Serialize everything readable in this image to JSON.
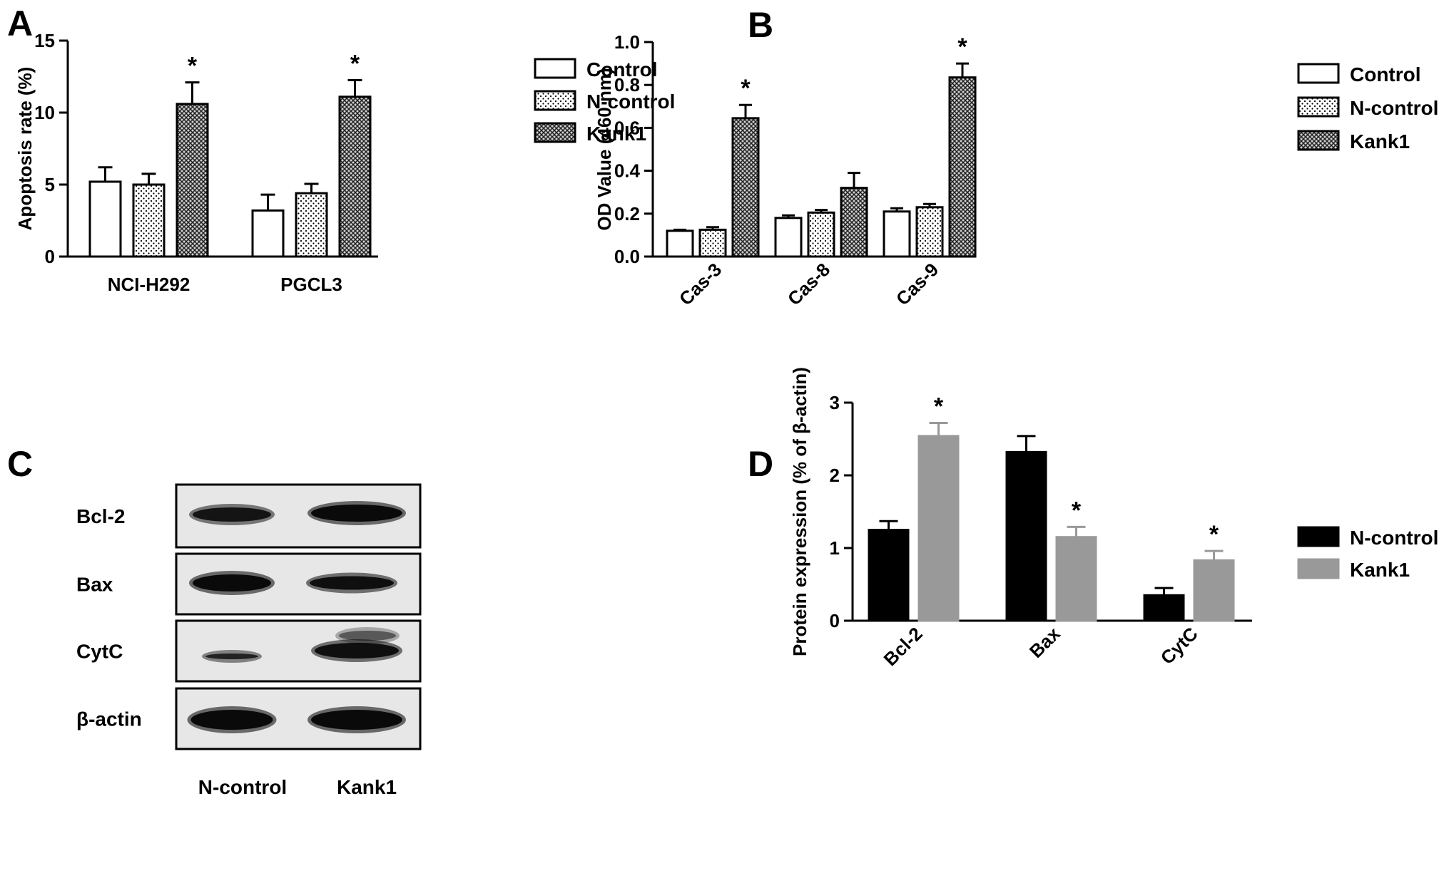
{
  "panels": {
    "A": {
      "letter": "A",
      "chart_data": {
        "type": "bar",
        "categories": [
          "NCI-H292",
          "PGCL3"
        ],
        "series": [
          {
            "name": "Control",
            "values": [
              5.2,
              3.2
            ],
            "errors": [
              1.0,
              1.1
            ]
          },
          {
            "name": "N-control",
            "values": [
              5.0,
              4.4
            ],
            "errors": [
              0.75,
              0.65
            ]
          },
          {
            "name": "Kank1",
            "values": [
              10.6,
              11.1
            ],
            "errors": [
              1.5,
              1.15
            ]
          }
        ],
        "significance": [
          [
            "",
            "",
            "*"
          ],
          [
            "",
            "",
            "*"
          ]
        ],
        "ylabel": "Apoptosis rate (%)",
        "ylim": [
          0,
          15
        ],
        "yticks": [
          "0",
          "5",
          "10",
          "15"
        ],
        "legend": "right",
        "patterns": [
          "white",
          "dots",
          "crosshatch"
        ]
      }
    },
    "B": {
      "letter": "B",
      "chart_data": {
        "type": "bar",
        "categories": [
          "Cas-3",
          "Cas-8",
          "Cas-9"
        ],
        "series": [
          {
            "name": "Control",
            "values": [
              0.12,
              0.18,
              0.21
            ],
            "errors": [
              0.005,
              0.012,
              0.015
            ]
          },
          {
            "name": "N-control",
            "values": [
              0.125,
              0.205,
              0.23
            ],
            "errors": [
              0.012,
              0.012,
              0.015
            ]
          },
          {
            "name": "Kank1",
            "values": [
              0.645,
              0.32,
              0.835
            ],
            "errors": [
              0.062,
              0.07,
              0.065
            ]
          }
        ],
        "significance": [
          [
            "",
            "",
            "*"
          ],
          [
            "",
            "",
            ""
          ],
          [
            "",
            "",
            "*"
          ]
        ],
        "ylabel": "OD Value (460 nm)",
        "ylim": [
          0,
          1.0
        ],
        "yticks": [
          "0.0",
          "0.2",
          "0.4",
          "0.6",
          "0.8",
          "1.0"
        ],
        "legend": "right",
        "patterns": [
          "white",
          "dots",
          "crosshatch"
        ]
      }
    },
    "C": {
      "letter": "C",
      "rows": [
        "Bcl-2",
        "Bax",
        "CytC",
        "β-actin"
      ],
      "lanes": [
        "N-control",
        "Kank1"
      ]
    },
    "D": {
      "letter": "D",
      "chart_data": {
        "type": "bar",
        "categories": [
          "Bcl-2",
          "Bax",
          "CytC"
        ],
        "series": [
          {
            "name": "N-control",
            "values": [
              1.25,
              2.32,
              0.35
            ],
            "errors": [
              0.12,
              0.22,
              0.1
            ],
            "color": "#000000"
          },
          {
            "name": "Kank1",
            "values": [
              2.54,
              1.15,
              0.83
            ],
            "errors": [
              0.18,
              0.14,
              0.13
            ],
            "color": "#999999"
          }
        ],
        "significance": [
          [
            "",
            "*"
          ],
          [
            "",
            "*"
          ],
          [
            "",
            "*"
          ]
        ],
        "ylabel": "Protein expression (% of β-actin)",
        "ylim": [
          0,
          3
        ],
        "yticks": [
          "0",
          "1",
          "2",
          "3"
        ],
        "legend": "right"
      }
    }
  }
}
